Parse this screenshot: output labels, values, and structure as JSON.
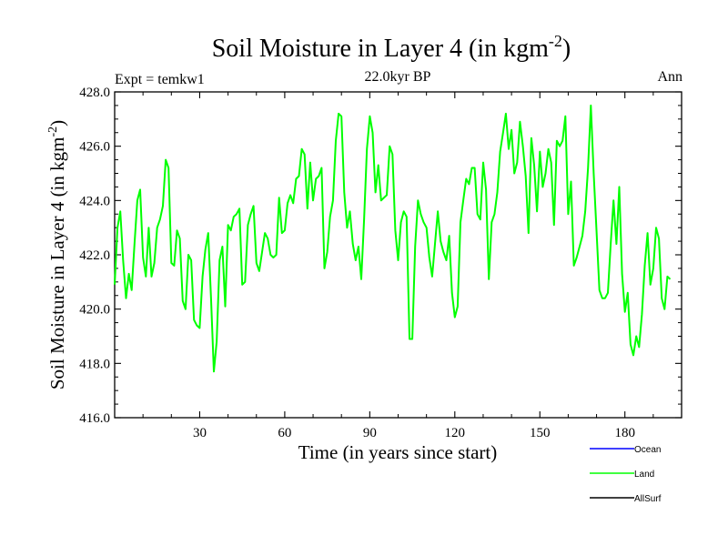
{
  "chart_data": {
    "type": "line",
    "title_main": "Soil Moisture in Layer 4 (in kgm",
    "title_sup": "-2",
    "title_close": ")",
    "subtitle": "22.0kyr BP",
    "left_label": "Expt = temkw1",
    "right_label": "Ann",
    "xlabel": "Time (in years since start)",
    "ylabel_main": "Soil Moisture in Layer 4 (in kgm",
    "ylabel_sup": "-2",
    "ylabel_close": ")",
    "xlim": [
      0,
      200
    ],
    "ylim": [
      416,
      428
    ],
    "x_ticks": [
      30,
      60,
      90,
      120,
      150,
      180
    ],
    "x_tick_labels": [
      "30",
      "60",
      "90",
      "120",
      "150",
      "180"
    ],
    "y_ticks": [
      416,
      418,
      420,
      422,
      424,
      426,
      428
    ],
    "y_tick_labels": [
      "416.0",
      "418.0",
      "420.0",
      "422.0",
      "424.0",
      "426.0",
      "428.0"
    ],
    "legend": [
      {
        "name": "Ocean",
        "color": "#0000ff"
      },
      {
        "name": "Land",
        "color": "#00ff00"
      },
      {
        "name": "AllSurf",
        "color": "#000000"
      }
    ],
    "series": [
      {
        "name": "Land",
        "color": "#00ff00",
        "x_start": 0,
        "x_step": 1,
        "values": [
          420.9,
          423.0,
          423.6,
          421.8,
          420.4,
          421.3,
          420.7,
          422.4,
          424.0,
          424.4,
          421.9,
          421.2,
          423.0,
          421.2,
          421.7,
          423.0,
          423.3,
          423.8,
          425.5,
          425.2,
          421.7,
          421.6,
          422.9,
          422.6,
          420.3,
          420.0,
          422.0,
          421.8,
          419.6,
          419.4,
          419.3,
          421.2,
          422.2,
          422.8,
          420.4,
          417.7,
          418.8,
          421.8,
          422.3,
          420.1,
          423.1,
          422.9,
          423.4,
          423.5,
          423.7,
          420.9,
          421.0,
          423.1,
          423.5,
          423.8,
          421.7,
          421.4,
          422.1,
          422.8,
          422.6,
          422.0,
          421.9,
          422.0,
          424.1,
          422.8,
          422.9,
          423.9,
          424.2,
          423.9,
          424.8,
          424.9,
          425.9,
          425.7,
          423.7,
          425.4,
          424.0,
          424.8,
          424.9,
          425.2,
          421.5,
          422.1,
          423.4,
          424.0,
          426.2,
          427.2,
          427.1,
          424.3,
          423.0,
          423.6,
          422.4,
          421.8,
          422.3,
          421.1,
          423.3,
          425.9,
          427.1,
          426.5,
          424.3,
          425.3,
          424.0,
          424.1,
          424.2,
          426.0,
          425.7,
          422.9,
          421.8,
          423.2,
          423.6,
          423.4,
          418.9,
          418.9,
          422.3,
          424.0,
          423.5,
          423.2,
          423.0,
          421.9,
          421.2,
          422.4,
          423.6,
          422.5,
          422.1,
          421.8,
          422.7,
          420.6,
          419.7,
          420.1,
          423.2,
          424.0,
          424.8,
          424.6,
          425.2,
          425.2,
          423.5,
          423.3,
          425.4,
          424.4,
          421.1,
          423.2,
          423.5,
          424.3,
          425.8,
          426.5,
          427.2,
          425.9,
          426.6,
          425.0,
          425.4,
          426.9,
          426.0,
          424.9,
          422.8,
          426.3,
          425.3,
          423.6,
          425.8,
          424.5,
          425.0,
          425.9,
          425.4,
          423.1,
          426.2,
          426.0,
          426.2,
          427.1,
          423.5,
          424.7,
          421.6,
          421.9,
          422.3,
          422.7,
          423.6,
          425.2,
          427.5,
          425.0,
          422.9,
          420.7,
          420.4,
          420.4,
          420.6,
          422.4,
          424.0,
          422.4,
          424.5,
          421.3,
          419.9,
          420.6,
          418.7,
          418.3,
          419.0,
          418.6,
          419.8,
          421.6,
          422.8,
          420.9,
          421.5,
          423.0,
          422.6,
          420.4,
          420.0,
          421.2,
          421.1
        ]
      }
    ]
  }
}
